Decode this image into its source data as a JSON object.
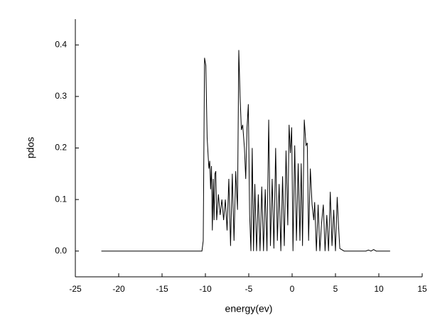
{
  "chart_data": {
    "type": "line",
    "x_label": "energy(ev)",
    "y_label": "pdos",
    "xlim": [
      -25,
      15
    ],
    "ylim": [
      -0.05,
      0.45
    ],
    "xticks": [
      -25,
      -20,
      -15,
      -10,
      -5,
      0,
      5,
      10,
      15
    ],
    "yticks": [
      {
        "value": 0,
        "label": "0.0"
      },
      0.1,
      0.2,
      0.3,
      0.4
    ],
    "x": [
      -22,
      -10.4,
      -10.25,
      -10.1,
      -9.95,
      -9.8,
      -9.6,
      -9.5,
      -9.4,
      -9.3,
      -9.2,
      -9.1,
      -9.0,
      -8.9,
      -8.8,
      -8.7,
      -8.5,
      -8.3,
      -8.1,
      -7.9,
      -7.7,
      -7.5,
      -7.3,
      -7.1,
      -6.9,
      -6.7,
      -6.5,
      -6.3,
      -6.15,
      -6.0,
      -5.85,
      -5.7,
      -5.5,
      -5.35,
      -5.2,
      -5.05,
      -4.9,
      -4.75,
      -4.6,
      -4.45,
      -4.3,
      -4.1,
      -3.9,
      -3.7,
      -3.5,
      -3.3,
      -3.1,
      -2.9,
      -2.7,
      -2.5,
      -2.3,
      -2.1,
      -1.9,
      -1.7,
      -1.5,
      -1.3,
      -1.1,
      -0.9,
      -0.7,
      -0.5,
      -0.35,
      -0.2,
      -0.05,
      0.1,
      0.3,
      0.5,
      0.7,
      0.9,
      1.05,
      1.2,
      1.4,
      1.6,
      1.75,
      1.9,
      2.1,
      2.3,
      2.5,
      2.6,
      2.8,
      3.0,
      3.2,
      3.4,
      3.6,
      3.8,
      4.0,
      4.2,
      4.4,
      4.6,
      4.8,
      5.0,
      5.2,
      5.35,
      5.5,
      6.0,
      6.5,
      8.5,
      8.8,
      9.1,
      9.4,
      9.7,
      11.3
    ],
    "series": [
      {
        "color": "#000000",
        "values": [
          0,
          0,
          0.02,
          0.375,
          0.36,
          0.22,
          0.16,
          0.175,
          0.12,
          0.165,
          0.04,
          0.14,
          0.06,
          0.15,
          0.155,
          0.06,
          0.11,
          0.07,
          0.1,
          0.06,
          0.1,
          0.04,
          0.14,
          0.01,
          0.15,
          0.02,
          0.155,
          0.08,
          0.39,
          0.3,
          0.235,
          0.245,
          0.2,
          0.14,
          0.24,
          0.285,
          0.07,
          0,
          0.2,
          0,
          0.13,
          0,
          0.11,
          0,
          0.125,
          0,
          0.12,
          0,
          0.255,
          0.01,
          0.14,
          0.005,
          0.2,
          0.02,
          0.13,
          0,
          0.145,
          0.01,
          0.195,
          0.05,
          0.245,
          0.19,
          0.24,
          0,
          0.205,
          0.02,
          0.17,
          0.02,
          0.17,
          0.01,
          0.255,
          0.205,
          0.21,
          0.02,
          0.16,
          0.09,
          0.06,
          0.095,
          0,
          0.09,
          0,
          0.055,
          0.09,
          0,
          0.07,
          0,
          0.115,
          0.01,
          0.08,
          0,
          0.105,
          0.05,
          0.005,
          0,
          0,
          0,
          0.002,
          0,
          0.003,
          0,
          0
        ]
      }
    ]
  }
}
